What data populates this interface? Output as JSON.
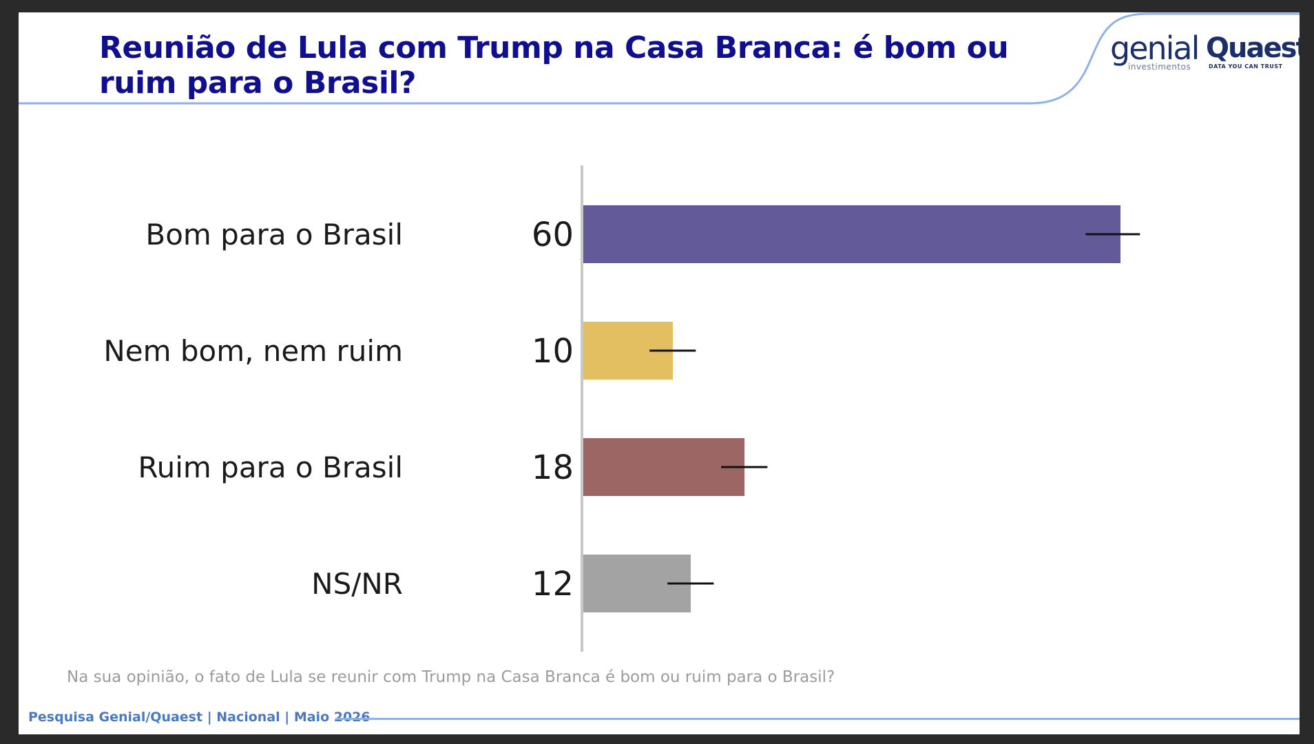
{
  "header": {
    "title": "Reunião de Lula com Trump na Casa Branca: é bom ou ruim para o Brasil?",
    "logo_genial": "genial",
    "logo_genial_sub": "investimentos",
    "logo_quaest": "Quaest",
    "logo_quaest_sub": "DATA YOU CAN TRUST"
  },
  "chart_data": {
    "type": "bar",
    "orientation": "horizontal",
    "categories": [
      "Bom para o Brasil",
      "Nem bom, nem ruim",
      "Ruim para o Brasil",
      "NS/NR"
    ],
    "values": [
      60,
      10,
      18,
      12
    ],
    "colors": [
      "#635b99",
      "#e3bf61",
      "#9b6663",
      "#a3a3a3"
    ],
    "error_bars": true,
    "xlim": [
      0,
      100
    ]
  },
  "question": "Na sua opinião, o fato de Lula se reunir com Trump na Casa Branca é bom ou ruim para o Brasil?",
  "footer": "Pesquisa Genial/Quaest | Nacional | Maio 2026",
  "colors": {
    "title": "#10108e",
    "footer": "#4a78c4",
    "accent_line": "#8fb2e6"
  }
}
